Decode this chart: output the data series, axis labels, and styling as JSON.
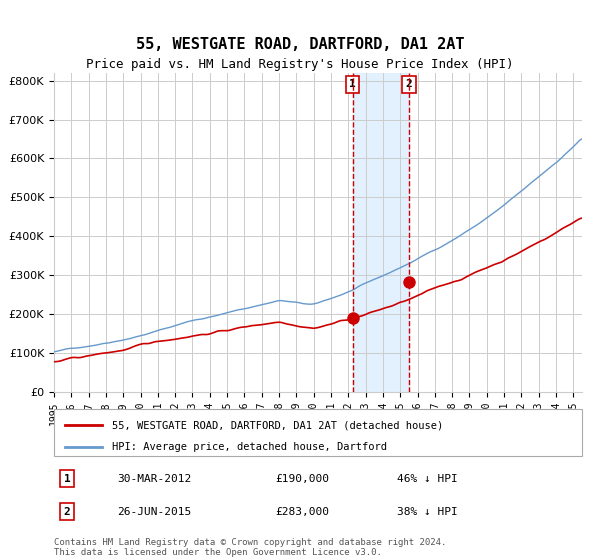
{
  "title": "55, WESTGATE ROAD, DARTFORD, DA1 2AT",
  "subtitle": "Price paid vs. HM Land Registry's House Price Index (HPI)",
  "footnote": "Contains HM Land Registry data © Crown copyright and database right 2024.\nThis data is licensed under the Open Government Licence v3.0.",
  "legend_entries": [
    "55, WESTGATE ROAD, DARTFORD, DA1 2AT (detached house)",
    "HPI: Average price, detached house, Dartford"
  ],
  "table": [
    {
      "num": 1,
      "date": "30-MAR-2012",
      "price": "£190,000",
      "pct": "46% ↓ HPI"
    },
    {
      "num": 2,
      "date": "26-JUN-2015",
      "price": "£283,000",
      "pct": "38% ↓ HPI"
    }
  ],
  "sale1_year": 2012.25,
  "sale2_year": 2015.5,
  "sale1_price": 190000,
  "sale2_price": 283000,
  "red_line_color": "#cc0000",
  "blue_line_color": "#6699cc",
  "marker_color": "#cc0000",
  "dashed_line_color": "#cc0000",
  "shade_color": "#ddeeff",
  "background_color": "#ffffff",
  "grid_color": "#cccccc",
  "ylim": [
    0,
    820000
  ],
  "xlim_start": 1995,
  "xlim_end": 2025.5,
  "yticks": [
    0,
    100000,
    200000,
    300000,
    400000,
    500000,
    600000,
    700000,
    800000
  ],
  "ytick_labels": [
    "£0",
    "£100K",
    "£200K",
    "£300K",
    "£400K",
    "£500K",
    "£600K",
    "£700K",
    "£800K"
  ],
  "xtick_years": [
    1995,
    1996,
    1997,
    1998,
    1999,
    2000,
    2001,
    2002,
    2003,
    2004,
    2005,
    2006,
    2007,
    2008,
    2009,
    2010,
    2011,
    2012,
    2013,
    2014,
    2015,
    2016,
    2017,
    2018,
    2019,
    2020,
    2021,
    2022,
    2023,
    2024,
    2025
  ]
}
